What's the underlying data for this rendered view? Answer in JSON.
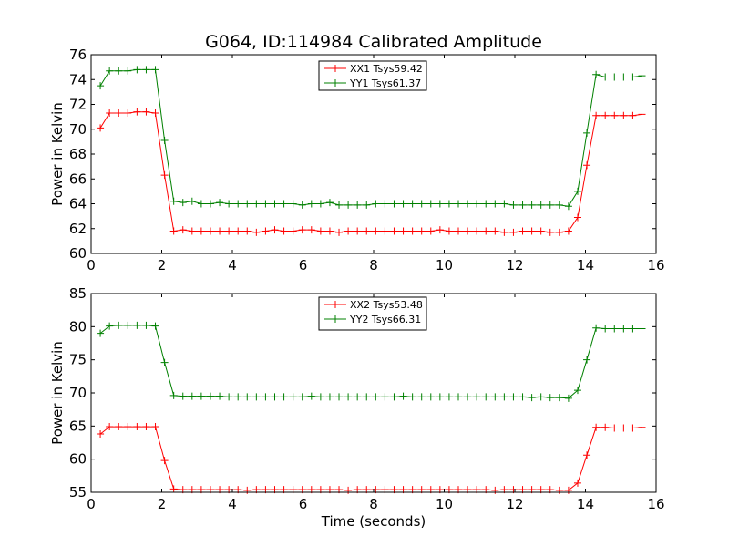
{
  "figure_title": "G064, ID:114984 Calibrated Amplitude",
  "colors": {
    "red": "#ff0000",
    "green": "#008000"
  },
  "chart_data": [
    {
      "type": "line",
      "xlabel": "",
      "ylabel": "Power in Kelvin",
      "xlim": [
        0,
        16
      ],
      "ylim": [
        60,
        76
      ],
      "xticks": [
        0,
        2,
        4,
        6,
        8,
        10,
        12,
        14,
        16
      ],
      "yticks": [
        60,
        62,
        64,
        66,
        68,
        70,
        72,
        74,
        76
      ],
      "grid": false,
      "legend_position": "top-center",
      "x": [
        0.26,
        0.52,
        0.78,
        1.04,
        1.3,
        1.56,
        1.82,
        2.08,
        2.34,
        2.6,
        2.86,
        3.12,
        3.38,
        3.64,
        3.9,
        4.16,
        4.42,
        4.68,
        4.94,
        5.2,
        5.46,
        5.72,
        5.98,
        6.24,
        6.5,
        6.76,
        7.02,
        7.28,
        7.54,
        7.8,
        8.06,
        8.32,
        8.58,
        8.84,
        9.1,
        9.36,
        9.62,
        9.88,
        10.14,
        10.4,
        10.66,
        10.92,
        11.18,
        11.44,
        11.7,
        11.96,
        12.22,
        12.48,
        12.74,
        13.0,
        13.26,
        13.52,
        13.78,
        14.04,
        14.3,
        14.56,
        14.82,
        15.08,
        15.34,
        15.6
      ],
      "series": [
        {
          "name": "XX1 Tsys59.42",
          "color": "#ff0000",
          "values": [
            70.1,
            71.3,
            71.3,
            71.3,
            71.4,
            71.4,
            71.3,
            66.3,
            61.8,
            61.9,
            61.8,
            61.8,
            61.8,
            61.8,
            61.8,
            61.8,
            61.8,
            61.7,
            61.8,
            61.9,
            61.8,
            61.8,
            61.9,
            61.9,
            61.8,
            61.8,
            61.7,
            61.8,
            61.8,
            61.8,
            61.8,
            61.8,
            61.8,
            61.8,
            61.8,
            61.8,
            61.8,
            61.9,
            61.8,
            61.8,
            61.8,
            61.8,
            61.8,
            61.8,
            61.7,
            61.7,
            61.8,
            61.8,
            61.8,
            61.7,
            61.7,
            61.8,
            62.9,
            67.1,
            71.1,
            71.1,
            71.1,
            71.1,
            71.1,
            71.2
          ]
        },
        {
          "name": "YY1 Tsys61.37",
          "color": "#008000",
          "values": [
            73.5,
            74.7,
            74.7,
            74.7,
            74.8,
            74.8,
            74.8,
            69.1,
            64.2,
            64.1,
            64.2,
            64.0,
            64.0,
            64.1,
            64.0,
            64.0,
            64.0,
            64.0,
            64.0,
            64.0,
            64.0,
            64.0,
            63.9,
            64.0,
            64.0,
            64.1,
            63.9,
            63.9,
            63.9,
            63.9,
            64.0,
            64.0,
            64.0,
            64.0,
            64.0,
            64.0,
            64.0,
            64.0,
            64.0,
            64.0,
            64.0,
            64.0,
            64.0,
            64.0,
            64.0,
            63.9,
            63.9,
            63.9,
            63.9,
            63.9,
            63.9,
            63.8,
            65.0,
            69.7,
            74.4,
            74.2,
            74.2,
            74.2,
            74.2,
            74.3
          ]
        }
      ]
    },
    {
      "type": "line",
      "xlabel": "Time (seconds)",
      "ylabel": "Power in Kelvin",
      "xlim": [
        0,
        16
      ],
      "ylim": [
        55,
        85
      ],
      "xticks": [
        0,
        2,
        4,
        6,
        8,
        10,
        12,
        14,
        16
      ],
      "yticks": [
        55,
        60,
        65,
        70,
        75,
        80,
        85
      ],
      "grid": false,
      "legend_position": "top-center",
      "x": [
        0.26,
        0.52,
        0.78,
        1.04,
        1.3,
        1.56,
        1.82,
        2.08,
        2.34,
        2.6,
        2.86,
        3.12,
        3.38,
        3.64,
        3.9,
        4.16,
        4.42,
        4.68,
        4.94,
        5.2,
        5.46,
        5.72,
        5.98,
        6.24,
        6.5,
        6.76,
        7.02,
        7.28,
        7.54,
        7.8,
        8.06,
        8.32,
        8.58,
        8.84,
        9.1,
        9.36,
        9.62,
        9.88,
        10.14,
        10.4,
        10.66,
        10.92,
        11.18,
        11.44,
        11.7,
        11.96,
        12.22,
        12.48,
        12.74,
        13.0,
        13.26,
        13.52,
        13.78,
        14.04,
        14.3,
        14.56,
        14.82,
        15.08,
        15.34,
        15.6
      ],
      "series": [
        {
          "name": "XX2 Tsys53.48",
          "color": "#ff0000",
          "values": [
            63.8,
            64.9,
            64.9,
            64.9,
            64.9,
            64.9,
            64.9,
            59.8,
            55.5,
            55.4,
            55.4,
            55.4,
            55.4,
            55.4,
            55.4,
            55.4,
            55.3,
            55.4,
            55.4,
            55.4,
            55.4,
            55.4,
            55.4,
            55.4,
            55.4,
            55.4,
            55.4,
            55.3,
            55.4,
            55.4,
            55.4,
            55.4,
            55.4,
            55.4,
            55.4,
            55.4,
            55.4,
            55.4,
            55.4,
            55.4,
            55.4,
            55.4,
            55.4,
            55.3,
            55.4,
            55.4,
            55.4,
            55.4,
            55.4,
            55.4,
            55.3,
            55.3,
            56.4,
            60.6,
            64.8,
            64.8,
            64.7,
            64.7,
            64.7,
            64.8
          ]
        },
        {
          "name": "YY2 Tsys66.31",
          "color": "#008000",
          "values": [
            79.0,
            80.1,
            80.2,
            80.2,
            80.2,
            80.2,
            80.1,
            74.6,
            69.6,
            69.5,
            69.5,
            69.5,
            69.5,
            69.5,
            69.4,
            69.4,
            69.4,
            69.4,
            69.4,
            69.4,
            69.4,
            69.4,
            69.4,
            69.5,
            69.4,
            69.4,
            69.4,
            69.4,
            69.4,
            69.4,
            69.4,
            69.4,
            69.4,
            69.5,
            69.4,
            69.4,
            69.4,
            69.4,
            69.4,
            69.4,
            69.4,
            69.4,
            69.4,
            69.4,
            69.4,
            69.4,
            69.4,
            69.3,
            69.4,
            69.3,
            69.3,
            69.2,
            70.4,
            75.0,
            79.8,
            79.7,
            79.7,
            79.7,
            79.7,
            79.7
          ]
        }
      ]
    }
  ]
}
